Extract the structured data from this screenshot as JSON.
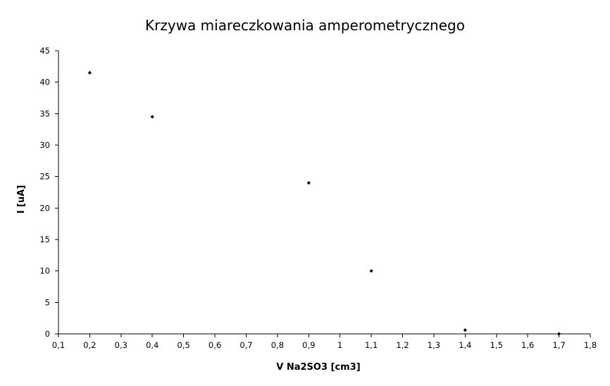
{
  "chart_data": {
    "type": "scatter",
    "title": "Krzywa miareczkowania amperometrycznego",
    "xlabel": "V Na2SO3 [cm3]",
    "ylabel": "I [uA]",
    "xlim": [
      0.1,
      1.8
    ],
    "ylim": [
      0,
      45
    ],
    "xticks": [
      "0,1",
      "0,2",
      "0,3",
      "0,4",
      "0,5",
      "0,6",
      "0,7",
      "0,8",
      "0,9",
      "1",
      "1,1",
      "1,2",
      "1,3",
      "1,4",
      "1,5",
      "1,6",
      "1,7",
      "1,8"
    ],
    "yticks": [
      "0",
      "5",
      "10",
      "15",
      "20",
      "25",
      "30",
      "35",
      "40",
      "45"
    ],
    "grid": false,
    "legend": "none",
    "marker_color": "#000000",
    "series": [
      {
        "x": [
          0.2,
          0.4,
          0.9,
          1.1,
          1.4,
          1.7
        ],
        "y": [
          41.5,
          34.5,
          24,
          10,
          0.6,
          0
        ]
      }
    ]
  }
}
